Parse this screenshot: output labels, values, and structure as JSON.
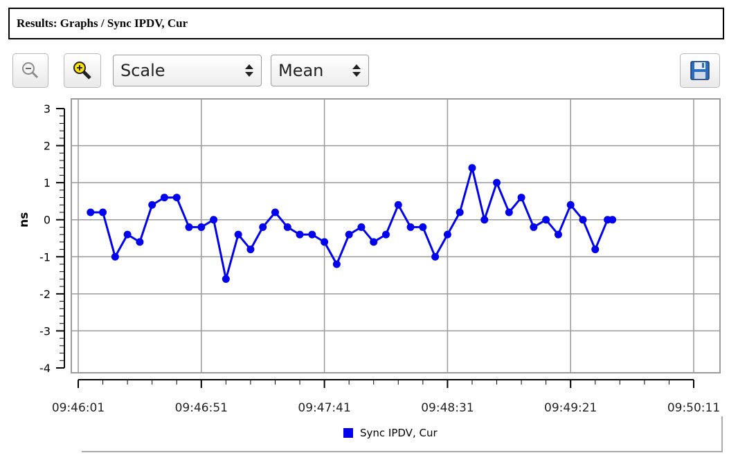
{
  "header": {
    "title": "Results: Graphs / Sync IPDV, Cur"
  },
  "toolbar": {
    "zoom_out_icon": "zoom-out-icon",
    "zoom_in_icon": "zoom-in-icon",
    "scale_select": {
      "value": "Scale"
    },
    "stat_select": {
      "value": "Mean"
    },
    "save_icon": "save-icon"
  },
  "chart_data": {
    "type": "line",
    "ylabel": "ns",
    "xlabel": "",
    "ylim": [
      -4,
      3
    ],
    "xlim": [
      "09:46:01",
      "09:50:11"
    ],
    "y_ticks": [
      "3",
      "2",
      "1",
      "0",
      "-1",
      "-2",
      "-3",
      "-4"
    ],
    "x_ticks": [
      "09:46:01",
      "09:46:51",
      "09:47:41",
      "09:48:31",
      "09:49:21",
      "09:50:11"
    ],
    "grid": true,
    "legend_position": "bottom-center",
    "series": [
      {
        "name": "Sync IPDV, Cur",
        "color": "#0000ee",
        "x": [
          "09:46:06",
          "09:46:11",
          "09:46:16",
          "09:46:21",
          "09:46:26",
          "09:46:31",
          "09:46:36",
          "09:46:41",
          "09:46:46",
          "09:46:51",
          "09:46:56",
          "09:47:01",
          "09:47:06",
          "09:47:11",
          "09:47:16",
          "09:47:21",
          "09:47:26",
          "09:47:31",
          "09:47:36",
          "09:47:41",
          "09:47:46",
          "09:47:51",
          "09:47:56",
          "09:48:01",
          "09:48:06",
          "09:48:11",
          "09:48:16",
          "09:48:21",
          "09:48:26",
          "09:48:31",
          "09:48:36",
          "09:48:41",
          "09:48:46",
          "09:48:51",
          "09:48:56",
          "09:49:01",
          "09:49:06",
          "09:49:11",
          "09:49:16",
          "09:49:21",
          "09:49:26",
          "09:49:31",
          "09:49:36",
          "09:49:38"
        ],
        "values": [
          0.2,
          0.2,
          -1.0,
          -0.4,
          -0.6,
          0.4,
          0.6,
          0.6,
          -0.2,
          -0.2,
          0.0,
          -1.6,
          -0.4,
          -0.8,
          -0.2,
          0.2,
          -0.2,
          -0.4,
          -0.4,
          -0.6,
          -1.2,
          -0.4,
          -0.2,
          -0.6,
          -0.4,
          0.4,
          -0.2,
          -0.2,
          -1.0,
          -0.4,
          0.2,
          1.4,
          0.0,
          1.0,
          0.2,
          0.6,
          -0.2,
          0.0,
          -0.4,
          0.4,
          0.0,
          -0.8,
          0.0,
          0.0
        ]
      }
    ]
  }
}
